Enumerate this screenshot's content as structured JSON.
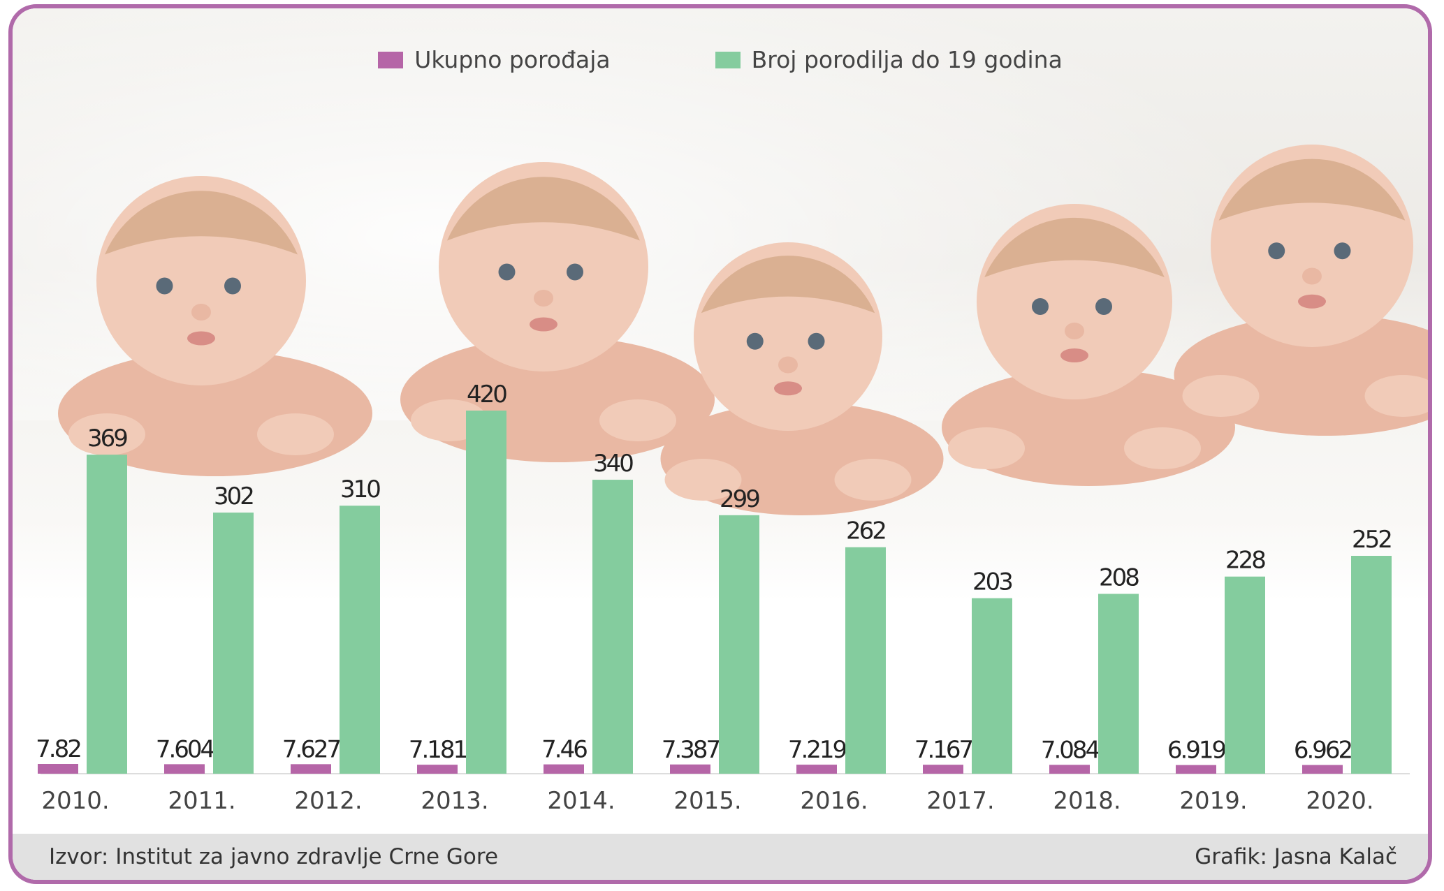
{
  "legend": {
    "total_label": "Ukupno porođaja",
    "teen_label": "Broj porodilja do 19 godina"
  },
  "colors": {
    "total": "#b565a7",
    "teen": "#84cc9e",
    "frame": "#b06aaa",
    "footer_bg": "#e1e1e1"
  },
  "footer": {
    "source": "Izvor: Institut za javno zdravlje Crne Gore",
    "credit": "Grafik: Jasna Kalač"
  },
  "chart_data": {
    "type": "bar",
    "categories": [
      "2010.",
      "2011.",
      "2012.",
      "2013.",
      "2014.",
      "2015.",
      "2016.",
      "2017.",
      "2018.",
      "2019.",
      "2020."
    ],
    "series": [
      {
        "name": "Ukupno porođaja",
        "values": [
          7.82,
          7.604,
          7.627,
          7.181,
          7.46,
          7.387,
          7.219,
          7.167,
          7.084,
          6.919,
          6.962
        ],
        "labels": [
          "7.82",
          "7.604",
          "7.627",
          "7.181",
          "7.46",
          "7.387",
          "7.219",
          "7.167",
          "7.084",
          "6.919",
          "6.962"
        ]
      },
      {
        "name": "Broj porodilja do 19 godina",
        "values": [
          369,
          302,
          310,
          420,
          340,
          299,
          262,
          203,
          208,
          228,
          252
        ],
        "labels": [
          "369",
          "302",
          "310",
          "420",
          "340",
          "299",
          "262",
          "203",
          "208",
          "228",
          "252"
        ]
      }
    ],
    "xlabel": "",
    "ylabel": "",
    "ylim": [
      0,
      420
    ],
    "grid": false,
    "legend_position": "top-center",
    "background_image": "five babies lying on a white blanket"
  }
}
